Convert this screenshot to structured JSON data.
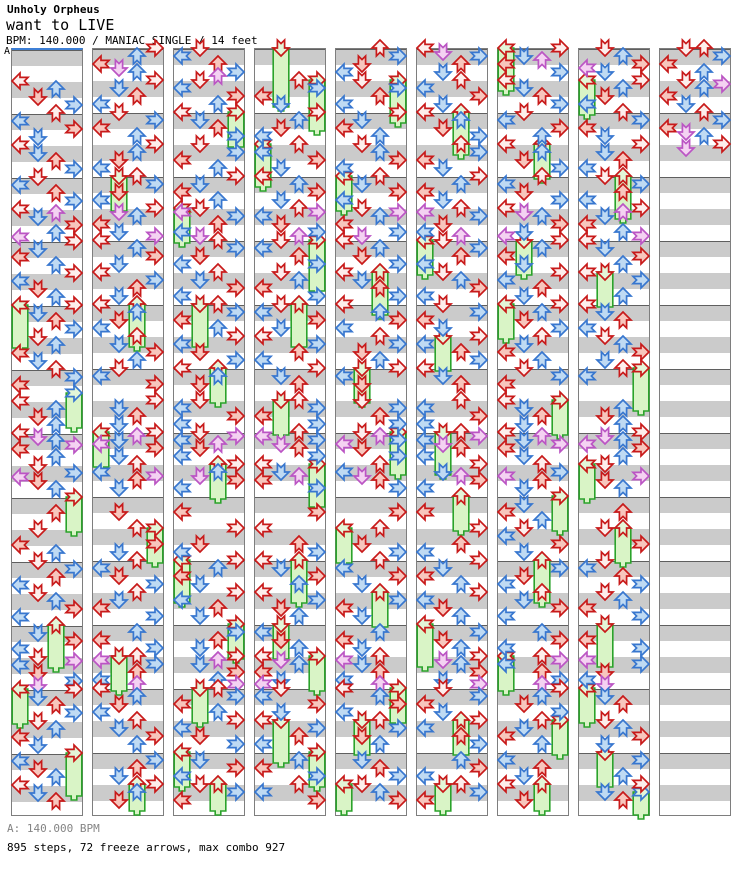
{
  "header": {
    "title": "Unholy Orpheus",
    "subtitle": "want to LIVE",
    "info_line": "BPM: 140.000 / MANIAC SINGLE / 14 feet"
  },
  "footer": {
    "bpm_line": "A: 140.000 BPM",
    "stats_line": "895 steps, 72 freeze arrows, max combo 927"
  },
  "marker": {
    "label": "A",
    "color": "#3d7fd6"
  },
  "colors": {
    "stripe_gray": "#cbcbcb",
    "stripe_white": "#ffffff",
    "measure_line": "#5f5f5f",
    "column_border": "#7e7e7e",
    "note_4th_stroke": "#c81a1a",
    "note_4th_fill": "#fdeeec",
    "note_4th_alt_fill": "#f7c6bd",
    "note_8th_stroke": "#3877cf",
    "note_8th_fill": "#bfdaf3",
    "note_16th_stroke": "#bb55c4",
    "note_16th_fill": "#f4d2f2",
    "freeze_stroke": "#2ba32b",
    "freeze_fill": "#d9f4c6"
  },
  "chart": {
    "lane_directions": [
      "left",
      "down",
      "up",
      "right"
    ],
    "columns": [
      {
        "notes": "8:0:0 10:2:1 12:1:3 14:3:1 16:2:0 18:0:1 20:3:3 22:1:1 24:0:0 26:1:1 28:2:3 30:3:1 32:1:0 34:0:1 36:2:3 38:3:1 40:0:0 41:2:2 42:1:1 44:3:3 46:2:1 47:0:2 48:3:0 50:1:1 52:0:3 54:2:1 56:3:0 58:0:1 60:1:3 62:2:1 64:3:0 66:1:1 68:2:3 70:3:1 72:1:0 74:2:1 76:0:3 78:1:1 80:2:0 82:3:1 84:0:3 88:0:0 90:2:1 92:1:3 94:2:1 96:0:0 97:1:2 98:2:1 99:3:2 100:0:3 102:2:1 104:1:0 106:3:1 107:0:2 108:1:3 110:2:1 116:2:3 120:1:0 124:0:3 126:2:1 128:1:0 130:3:1 132:2:3 134:0:1 136:1:0 138:2:1 140:3:3 142:0:1 146:1:1 148:3:3 150:0:1 152:1:0 153:3:2 154:0:1 156:1:3 158:3:1 159:1:2 160:3:0 162:1:1 164:2:3 166:3:1 168:1:0 170:2:1 172:0:3 174:1:1 178:0:1 180:1:3 182:2:1 184:0:0 186:1:1 188:2:3",
        "freezes": "64:0:10:0 86:3:8:1 112:3:8:0 144:2:10:0 160:0:8:0 176:3:10:0"
      },
      {
        "notes": "0:3:0 2:2:1 4:0:3 5:1:2 6:2:1 8:3:0 10:1:1 12:2:3 14:0:1 16:1:0 18:3:1 20:0:3 22:2:1 24:3:0 26:2:1 28:1:3 30:0:1 32:2:0 34:3:1 36:1:3 38:0:1 40:3:0 41:1:2 42:2:1 44:0:3 46:1:1 47:3:2 48:0:0 50:2:1 52:3:3 54:1:1 56:0:0 58:3:1 60:2:3 62:1:1 64:0:0 66:2:1 68:1:3 70:0:1 72:2:0 74:1:1 76:3:3 78:2:1 80:1:0 82:0:1 84:3:3 88:3:0 90:1:1 92:2:3 94:1:1 96:3:0 97:2:2 98:1:1 99:0:2 100:3:3 102:1:1 104:2:0 106:0:1 107:3:2 108:2:3 110:1:1 116:1:3 120:2:0 124:3:3 126:1:1 128:2:0 130:0:1 132:1:3 134:3:1 136:2:0 138:1:1 140:0:3 142:3:1 146:2:1 148:0:3 150:3:1 152:2:0 153:0:2 154:3:1 156:2:3 158:0:1 159:2:2 160:0:0 162:2:1 164:1:3 166:0:1 168:2:0 170:1:1 172:3:3 174:2:1 178:3:1 180:2:3 182:1:1 184:3:0 186:2:1 188:1:3",
        "freezes": "32:1:8:0 64:2:10:0 96:0:8:0 120:3:8:0 152:1:8:0 184:2:6:0"
      },
      {
        "notes": "0:1:0 2:0:1 4:2:3 6:3:1 7:2:2 8:1:0 10:0:1 12:3:3 14:2:1 16:0:0 18:1:1 20:2:3 22:3:1 24:1:0 26:3:1 28:0:3 30:2:1 32:3:0 34:1:1 36:0:3 38:2:1 40:1:0 41:0:2 42:3:1 44:2:3 46:0:1 47:1:2 48:2:0 50:3:1 52:1:3 54:0:1 56:2:0 58:1:1 60:3:3 62:0:1 64:2:0 66:3:1 68:0:3 70:2:1 72:3:0 74:0:1 76:1:3 78:3:1 80:0:0 82:2:1 84:1:3 88:1:0 90:0:1 92:3:3 94:0:1 96:1:0 97:3:2 98:0:1 99:2:2 100:1:3 102:0:1 104:3:0 106:2:1 107:1:2 108:3:3 110:0:1 116:0:3 120:3:0 124:1:3 126:0:1 128:3:0 130:2:1 132:0:3 134:1:1 136:3:0 138:0:1 140:2:3 142:1:1 146:3:1 148:2:3 150:1:1 152:3:0 153:2:2 154:1:1 156:3:3 158:2:1 159:3:2 160:2:0 162:3:1 164:0:3 166:2:1 168:3:0 170:0:1 172:1:3 174:3:1 178:1:1 180:3:3 182:0:1 184:1:0 186:3:1 188:0:3",
        "freezes": "16:3:8:0 40:0:8:0 64:1:10:0 80:2:8:0 104:2:8:0 128:0:10:0 144:3:8:0 160:1:8:0 176:0:8:0 184:2:6:0"
      },
      {
        "notes": "8:2:0 10:3:1 12:0:3 14:1:1 16:3:0 18:2:1 20:1:3 22:0:1 24:2:0 26:0:1 28:3:3 30:1:1 32:0:0 34:2:1 36:3:3 38:1:1 40:2:0 41:3:2 42:0:1 44:1:3 46:3:1 47:2:2 48:1:0 50:0:1 52:2:3 54:3:1 56:1:0 58:2:1 60:0:3 62:3:1 64:1:0 66:0:1 68:3:3 70:1:1 72:0:0 74:3:1 76:2:3 78:0:1 80:3:0 82:1:1 84:2:3 88:2:0 90:3:1 92:0:3 94:3:1 96:2:0 97:0:2 98:3:1 99:1:2 100:2:3 102:3:1 104:0:0 106:1:1 107:2:2 108:0:3 110:3:1 116:3:3 120:0:0 124:2:3 126:3:1 128:0:0 130:1:1 132:3:3 134:2:1 136:0:0 138:3:1 140:1:3 142:2:1 146:0:1 148:1:3 150:2:1 152:0:0 153:1:2 154:2:1 156:0:3 158:1:1 159:0:2 160:1:0 162:0:1 164:3:3 166:1:1 168:0:0 170:3:1 172:2:3 174:0:1 178:2:1 180:0:3 182:3:1 184:2:0 186:0:1 188:3:3",
        "freezes": "0:1:14:0 8:3:12:0 24:0:10:0 48:3:12:0 64:2:10:0 88:1:8:0 104:3:10:0 128:2:10:0 144:1:8:0 152:3:8:0 168:1:10:0 176:3:8:0"
      },
      {
        "notes": "0:2:0 2:3:1 4:1:3 6:0:1 8:1:0 10:3:1 12:2:3 14:0:1 16:3:0 18:1:1 20:0:3 22:2:1 24:1:0 26:2:1 28:3:3 30:0:1 32:2:0 34:1:1 36:3:3 38:0:1 40:1:0 41:3:2 42:2:1 44:0:3 46:3:1 47:1:2 48:0:0 50:2:1 52:1:3 54:3:1 56:0:0 58:1:1 60:2:3 62:3:1 64:0:0 66:2:1 68:3:3 70:0:1 72:2:0 74:3:1 76:1:3 78:2:1 80:3:0 82:0:1 84:1:3 88:1:0 90:3:1 92:2:3 94:3:1 96:1:0 97:2:2 98:3:1 99:0:2 100:1:3 102:3:1 104:2:0 106:0:1 107:1:2 108:2:3 110:3:1 116:3:3 120:2:0 124:1:3 126:3:1 128:2:0 130:0:1 132:3:3 134:1:1 138:3:1 140:0:3 142:1:1 146:2:1 148:0:3 150:1:1 152:2:0 153:0:2 154:1:1 156:2:3 158:0:1 159:2:2 160:0:0 162:2:1 164:3:3 166:0:1 168:2:0 170:3:1 172:1:3 174:2:1 178:1:1 180:2:3 182:3:1 184:1:0 186:2:1 188:3:3",
        "freezes": "8:3:10:0 32:0:8:0 56:2:10:0 80:1:8:0 96:3:10:0 120:0:8:0 136:2:8:0 160:3:8:0 168:1:8:0 184:0:6:0"
      },
      {
        "notes": "0:0:0 1:1:2 2:3:1 4:2:3 6:1:1 8:2:0 10:0:1 12:3:3 14:1:1 16:0:0 18:2:1 20:1:3 22:3:1 24:2:0 26:3:1 28:0:3 30:1:1 32:3:0 34:2:1 36:0:3 38:1:1 40:2:0 41:0:2 42:3:1 44:1:3 46:0:1 47:2:2 48:1:0 50:3:1 52:2:3 54:0:1 56:1:0 58:2:1 60:3:3 62:0:1 64:1:0 66:3:1 68:0:3 70:1:1 72:3:0 74:0:1 76:2:3 78:3:1 80:0:0 82:1:1 84:2:3 88:2:0 90:0:1 92:3:3 94:0:1 96:2:0 97:3:2 98:0:1 99:1:2 100:2:3 102:0:1 104:3:0 106:1:1 107:2:2 108:3:3 110:0:1 116:0:3 120:3:0 124:2:3 126:0:1 128:3:0 130:1:1 132:0:3 134:2:1 136:3:0 138:0:1 140:1:3 142:2:1 146:3:1 148:1:3 150:2:1 152:3:0 153:1:2 154:2:1 156:3:3 158:1:1 159:3:2 160:1:0 162:3:1 164:0:3 166:1:1 168:3:0 170:0:1 172:2:3 174:3:1 178:2:1 180:3:3 182:0:1 184:2:0 186:3:1 188:0:3",
        "freezes": "16:2:10:0 48:0:8:0 72:1:8:0 96:1:10:0 112:2:8:0 144:0:10:0 168:2:8:0 184:1:6:0"
      },
      {
        "notes": "0:3:0 2:1:1 3:2:2 4:0:3 6:3:1 8:0:0 10:1:1 12:2:3 14:3:1 16:1:0 18:0:1 20:3:3 22:2:1 24:0:0 26:2:1 28:1:3 30:3:1 32:2:0 34:0:1 36:1:3 38:3:1 40:0:0 41:1:2 42:2:1 44:3:3 46:1:1 47:0:2 48:3:0 50:2:1 52:0:3 54:1:1 56:3:0 58:0:1 60:2:3 62:1:1 64:3:0 66:2:1 68:1:3 70:3:1 72:2:0 74:1:1 76:0:3 78:2:1 80:1:0 82:3:1 84:0:3 88:0:0 90:1:1 92:2:3 94:1:1 96:0:0 97:2:2 98:1:1 99:3:2 100:0:3 102:1:1 104:2:0 106:3:1 107:0:2 108:2:3 110:1:1 114:1:1 116:0:3 118:2:1 120:1:0 122:0:1 124:3:3 126:1:1 130:3:1 132:1:3 134:0:1 136:2:0 138:1:1 140:3:3 142:0:1 146:2:1 148:3:3 150:0:1 152:2:0 153:3:2 154:0:1 156:2:3 158:3:1 159:2:2 160:3:0 162:2:1 164:1:3 166:3:1 168:2:0 170:1:1 172:0:3 174:2:1 178:0:1 180:2:3 182:1:1 184:0:0 188:1:3",
        "freezes": "0:0:10:0 24:2:8:0 48:1:8:0 64:0:8:0 88:3:8:0 112:3:8:0 128:2:10:0 152:0:8:0 168:3:8:0 184:2:6:0"
      },
      {
        "notes": "0:1:0 2:2:1 4:3:3 5:0:2 6:1:1 8:3:0 10:2:1 12:1:3 14:0:1 16:2:0 18:3:1 20:0:3 22:1:1 24:3:0 26:1:1 28:2:3 30:0:1 32:1:0 34:3:1 36:2:3 38:0:1 40:3:0 41:2:2 42:1:1 44:0:3 46:2:1 47:3:2 48:0:0 50:1:1 52:3:3 54:2:1 56:0:0 58:3:1 62:2:1 64:0:0 66:1:1 68:2:3 70:0:1 72:1:0 74:2:1 76:3:3 78:1:1 80:2:0 82:0:1 90:2:1 92:1:3 94:2:1 96:3:0 97:1:2 98:2:1 99:0:2 100:3:3 102:2:1 104:1:0 107:3:2 108:1:3 110:2:1 116:2:3 120:1:0 124:3:3 128:1:0 130:0:1 132:2:3 134:3:1 136:1:0 138:2:1 140:0:3 142:3:1 148:0:3 150:3:1 153:0:2 154:3:1 156:1:3 158:0:1 159:1:2 162:1:1 164:2:3 168:1:0 170:2:1 172:3:3 174:1:1 178:3:1 182:2:1 184:3:0 186:1:1 188:2:3",
        "freezes": "8:0:8:0 32:2:10:0 56:1:8:0 80:3:10:0 104:0:8:0 120:2:8:0 144:1:10:0 160:0:8:0 176:1:8:0 186:3:5:1"
      },
      {
        "notes": "0:1:0 0:2:0 2:3:1 4:0:3 6:2:1 8:1:0 9:3:2 10:2:1 12:0:3 14:1:1 16:2:0 18:3:1 20:0:3 21:1:2 22:2:1 24:3:0 25:1:2",
        "freezes": ""
      }
    ]
  }
}
